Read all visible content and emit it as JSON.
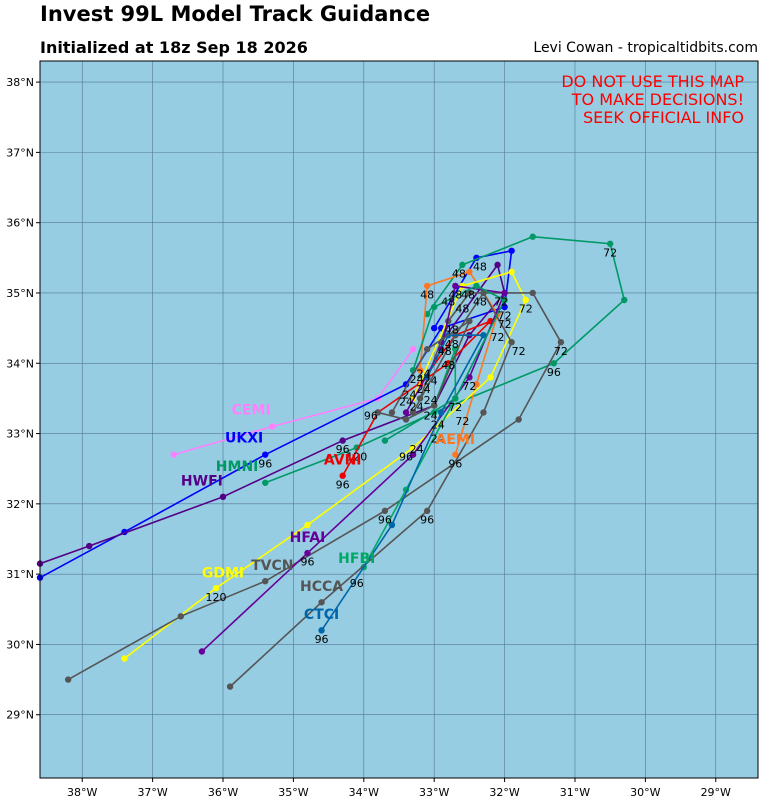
{
  "header": {
    "title": "Invest 99L Model Track Guidance",
    "subtitle": "Initialized at 18z Sep 18 2026",
    "credit": "Levi Cowan - tropicaltidbits.com"
  },
  "warning": [
    "DO NOT USE THIS MAP",
    "TO MAKE DECISIONS!",
    "SEEK OFFICIAL INFO"
  ],
  "colors": {
    "ocean": "#96cde2",
    "grid": "#557799",
    "frame": "#000000",
    "warning": "#ff0000"
  },
  "chart_data": {
    "type": "scatter",
    "map": {
      "lon_range": [
        -38.6,
        -28.4
      ],
      "lat_range": [
        28.1,
        38.3
      ]
    },
    "x_ticks": [
      {
        "v": -38,
        "label": "38°W"
      },
      {
        "v": -37,
        "label": "37°W"
      },
      {
        "v": -36,
        "label": "36°W"
      },
      {
        "v": -35,
        "label": "35°W"
      },
      {
        "v": -34,
        "label": "34°W"
      },
      {
        "v": -33,
        "label": "33°W"
      },
      {
        "v": -32,
        "label": "32°W"
      },
      {
        "v": -31,
        "label": "31°W"
      },
      {
        "v": -30,
        "label": "30°W"
      },
      {
        "v": -29,
        "label": "29°W"
      }
    ],
    "y_ticks": [
      {
        "v": 29,
        "label": "29°N"
      },
      {
        "v": 30,
        "label": "30°N"
      },
      {
        "v": 31,
        "label": "31°N"
      },
      {
        "v": 32,
        "label": "32°N"
      },
      {
        "v": 33,
        "label": "33°N"
      },
      {
        "v": 34,
        "label": "34°N"
      },
      {
        "v": 35,
        "label": "35°N"
      },
      {
        "v": 36,
        "label": "36°N"
      },
      {
        "v": 37,
        "label": "37°N"
      },
      {
        "v": 38,
        "label": "38°N"
      }
    ],
    "series": [
      {
        "name": "CEMI",
        "color": "#ff80ff",
        "label_at": [
          -35.6,
          33.27
        ],
        "points": [
          [
            -33.3,
            34.2
          ],
          [
            -33.8,
            33.5
          ],
          [
            -35.3,
            33.1
          ],
          [
            -36.7,
            32.7
          ]
        ]
      },
      {
        "name": "UKXI",
        "color": "#0000ff",
        "label_at": [
          -35.7,
          32.87
        ],
        "points": [
          [
            -33.0,
            34.5
          ],
          [
            -32.4,
            35.5
          ],
          [
            -31.9,
            35.6
          ],
          [
            -32.0,
            34.8
          ],
          [
            -32.9,
            34.5
          ],
          [
            -33.4,
            33.7
          ],
          [
            -35.4,
            32.7
          ],
          [
            -37.4,
            31.6
          ],
          [
            -38.6,
            30.95
          ]
        ]
      },
      {
        "name": "HMNI",
        "color": "#009966",
        "label_at": [
          -35.8,
          32.47
        ],
        "points": [
          [
            -33.1,
            34.7
          ],
          [
            -32.6,
            35.4
          ],
          [
            -31.6,
            35.8
          ],
          [
            -30.5,
            35.7
          ],
          [
            -30.3,
            34.9
          ],
          [
            -31.3,
            34.0
          ],
          [
            -33.0,
            33.3
          ],
          [
            -34.1,
            32.8
          ],
          [
            -35.4,
            32.3
          ]
        ]
      },
      {
        "name": "HWFI",
        "color": "#550088",
        "label_at": [
          -36.3,
          32.26
        ],
        "points": [
          [
            -32.9,
            34.3
          ],
          [
            -32.1,
            35.4
          ],
          [
            -32.0,
            35.0
          ],
          [
            -32.5,
            34.4
          ],
          [
            -33.0,
            33.4
          ],
          [
            -34.3,
            32.9
          ],
          [
            -36.0,
            32.1
          ],
          [
            -37.9,
            31.4
          ],
          [
            -38.6,
            31.15
          ]
        ]
      },
      {
        "name": "AVNI",
        "color": "#ee0000",
        "label_at": [
          -34.3,
          32.56
        ],
        "points": [
          [
            -33.2,
            33.7
          ],
          [
            -32.7,
            34.4
          ],
          [
            -32.2,
            34.6
          ],
          [
            -32.8,
            34.0
          ],
          [
            -33.8,
            33.3
          ],
          [
            -34.3,
            32.4
          ]
        ]
      },
      {
        "name": "AEMI",
        "color": "#ff7722",
        "label_at": [
          -32.7,
          32.85
        ],
        "points": [
          [
            -33.2,
            33.9
          ],
          [
            -33.1,
            35.1
          ],
          [
            -32.5,
            35.3
          ],
          [
            -32.1,
            34.7
          ],
          [
            -32.4,
            33.7
          ],
          [
            -32.7,
            32.7
          ]
        ]
      },
      {
        "name": "GDMI",
        "color": "#ffff00",
        "label_at": [
          -36.0,
          30.95
        ],
        "points": [
          [
            -33.3,
            33.5
          ],
          [
            -32.6,
            35.1
          ],
          [
            -31.9,
            35.3
          ],
          [
            -31.7,
            34.9
          ],
          [
            -32.2,
            33.8
          ],
          [
            -33.3,
            32.8
          ],
          [
            -34.8,
            31.7
          ],
          [
            -36.1,
            30.8
          ],
          [
            -37.4,
            29.8
          ]
        ]
      },
      {
        "name": "TVCN",
        "color": "#555555",
        "label_at": [
          -35.3,
          31.06
        ],
        "points": [
          [
            -33.2,
            33.5
          ],
          [
            -32.8,
            34.6
          ],
          [
            -32.5,
            35.0
          ],
          [
            -31.6,
            35.0
          ],
          [
            -31.2,
            34.3
          ],
          [
            -31.8,
            33.2
          ],
          [
            -33.7,
            31.9
          ],
          [
            -35.4,
            30.9
          ],
          [
            -36.6,
            30.4
          ],
          [
            -38.2,
            29.5
          ]
        ]
      },
      {
        "name": "HFAI",
        "color": "#660099",
        "label_at": [
          -34.8,
          31.46
        ],
        "points": [
          [
            -33.4,
            33.3
          ],
          [
            -32.9,
            34.2
          ],
          [
            -32.7,
            35.1
          ],
          [
            -32.0,
            35.0
          ],
          [
            -32.5,
            33.8
          ],
          [
            -33.3,
            32.7
          ],
          [
            -34.8,
            31.3
          ],
          [
            -36.3,
            29.9
          ]
        ]
      },
      {
        "name": "HFBI",
        "color": "#00aa66",
        "label_at": [
          -34.1,
          31.16
        ],
        "points": [
          [
            -33.0,
            33.4
          ],
          [
            -32.7,
            34.2
          ],
          [
            -32.7,
            33.5
          ],
          [
            -33.4,
            32.2
          ],
          [
            -34.0,
            31.1
          ]
        ]
      },
      {
        "name": "HCCA",
        "color": "#555555",
        "label_at": [
          -34.6,
          30.76
        ],
        "points": [
          [
            -33.3,
            33.3
          ],
          [
            -32.7,
            34.4
          ],
          [
            -32.3,
            35.0
          ],
          [
            -31.9,
            34.3
          ],
          [
            -32.3,
            33.3
          ],
          [
            -33.1,
            31.9
          ],
          [
            -34.6,
            30.6
          ],
          [
            -35.9,
            29.4
          ]
        ]
      },
      {
        "name": "CTCI",
        "color": "#0066aa",
        "label_at": [
          -34.6,
          30.36
        ],
        "points": [
          [
            -33.1,
            33.8
          ],
          [
            -32.8,
            34.4
          ],
          [
            -32.3,
            34.4
          ],
          [
            -32.9,
            33.3
          ],
          [
            -33.6,
            31.7
          ],
          [
            -34.6,
            30.2
          ]
        ]
      },
      {
        "name": "",
        "color": "#009966",
        "points": [
          [
            -33.3,
            33.9
          ],
          [
            -33.0,
            34.8
          ],
          [
            -32.4,
            35.1
          ],
          [
            -32.0,
            34.9
          ],
          [
            -32.7,
            33.5
          ],
          [
            -33.7,
            32.9
          ]
        ]
      },
      {
        "name": "",
        "color": "#555555",
        "points": [
          [
            -33.6,
            33.3
          ],
          [
            -33.1,
            34.2
          ],
          [
            -32.5,
            34.6
          ],
          [
            -33.0,
            33.4
          ],
          [
            -33.4,
            33.2
          ],
          [
            -33.8,
            33.3
          ]
        ]
      }
    ],
    "hour_labels": [
      {
        "text": "24",
        "lon": -33.25,
        "lat": 33.72
      },
      {
        "text": "24",
        "lon": -33.15,
        "lat": 33.58
      },
      {
        "text": "24",
        "lon": -33.05,
        "lat": 33.42
      },
      {
        "text": "24",
        "lon": -33.4,
        "lat": 33.4
      },
      {
        "text": "24",
        "lon": -33.25,
        "lat": 33.33
      },
      {
        "text": "24",
        "lon": -33.35,
        "lat": 33.5
      },
      {
        "text": "24",
        "lon": -33.05,
        "lat": 33.2
      },
      {
        "text": "24",
        "lon": -32.95,
        "lat": 33.07
      },
      {
        "text": "24",
        "lon": -33.25,
        "lat": 32.72
      },
      {
        "text": "24",
        "lon": -32.95,
        "lat": 32.87
      },
      {
        "text": "24",
        "lon": -33.05,
        "lat": 33.7
      },
      {
        "text": "24",
        "lon": -33.15,
        "lat": 33.8
      },
      {
        "text": "48",
        "lon": -32.65,
        "lat": 35.22
      },
      {
        "text": "48",
        "lon": -32.35,
        "lat": 35.32
      },
      {
        "text": "48",
        "lon": -33.1,
        "lat": 34.92
      },
      {
        "text": "48",
        "lon": -32.7,
        "lat": 34.92
      },
      {
        "text": "48",
        "lon": -32.52,
        "lat": 34.92
      },
      {
        "text": "48",
        "lon": -32.35,
        "lat": 34.82
      },
      {
        "text": "48",
        "lon": -32.8,
        "lat": 34.82
      },
      {
        "text": "48",
        "lon": -32.6,
        "lat": 34.72
      },
      {
        "text": "48",
        "lon": -32.75,
        "lat": 34.42
      },
      {
        "text": "48",
        "lon": -32.75,
        "lat": 34.22
      },
      {
        "text": "48",
        "lon": -32.85,
        "lat": 34.12
      },
      {
        "text": "48",
        "lon": -32.8,
        "lat": 33.92
      },
      {
        "text": "72",
        "lon": -32.05,
        "lat": 34.82
      },
      {
        "text": "72",
        "lon": -31.7,
        "lat": 34.72
      },
      {
        "text": "72",
        "lon": -32.0,
        "lat": 34.62
      },
      {
        "text": "72",
        "lon": -32.0,
        "lat": 34.5
      },
      {
        "text": "72",
        "lon": -32.1,
        "lat": 34.32
      },
      {
        "text": "72",
        "lon": -31.8,
        "lat": 34.12
      },
      {
        "text": "72",
        "lon": -30.5,
        "lat": 35.52
      },
      {
        "text": "72",
        "lon": -31.2,
        "lat": 34.12
      },
      {
        "text": "72",
        "lon": -32.5,
        "lat": 33.62
      },
      {
        "text": "72",
        "lon": -32.7,
        "lat": 33.32
      },
      {
        "text": "72",
        "lon": -32.6,
        "lat": 33.12
      },
      {
        "text": "96",
        "lon": -33.9,
        "lat": 33.2
      },
      {
        "text": "96",
        "lon": -35.4,
        "lat": 32.52
      },
      {
        "text": "96",
        "lon": -34.3,
        "lat": 32.72
      },
      {
        "text": "96",
        "lon": -34.3,
        "lat": 32.22
      },
      {
        "text": "96",
        "lon": -33.4,
        "lat": 32.62
      },
      {
        "text": "96",
        "lon": -32.7,
        "lat": 32.52
      },
      {
        "text": "96",
        "lon": -31.3,
        "lat": 33.82
      },
      {
        "text": "96",
        "lon": -33.7,
        "lat": 31.72
      },
      {
        "text": "96",
        "lon": -33.1,
        "lat": 31.72
      },
      {
        "text": "96",
        "lon": -34.8,
        "lat": 31.12
      },
      {
        "text": "96",
        "lon": -34.1,
        "lat": 30.82
      },
      {
        "text": "96",
        "lon": -34.6,
        "lat": 30.02
      },
      {
        "text": "120",
        "lon": -34.1,
        "lat": 32.62
      },
      {
        "text": "120",
        "lon": -36.1,
        "lat": 30.62
      }
    ]
  }
}
